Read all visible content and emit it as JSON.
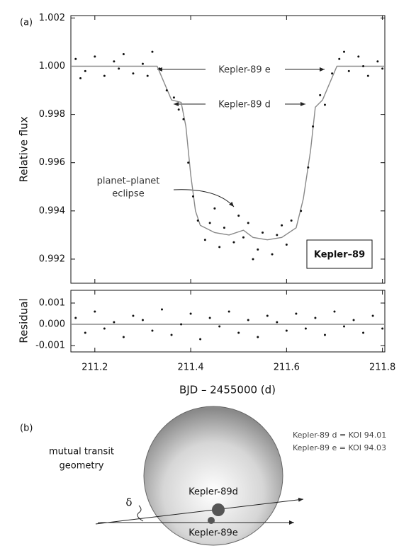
{
  "chart_data": [
    {
      "type": "scatter",
      "panel_label": "(a)",
      "y_label": "Relative flux",
      "xlim": [
        211.15,
        211.805
      ],
      "ylim": [
        0.991,
        1.0021
      ],
      "yticks": [
        1.002,
        {
          "value": 1,
          "label": "1.000"
        },
        0.998,
        0.996,
        0.994,
        0.992
      ],
      "points": {
        "color": "#111111",
        "x": [
          211.16,
          211.17,
          211.18,
          211.2,
          211.22,
          211.24,
          211.25,
          211.26,
          211.28,
          211.3,
          211.31,
          211.32,
          211.335,
          211.35,
          211.365,
          211.375,
          211.385,
          211.395,
          211.405,
          211.415,
          211.43,
          211.44,
          211.45,
          211.46,
          211.47,
          211.49,
          211.5,
          211.51,
          211.52,
          211.53,
          211.54,
          211.55,
          211.57,
          211.58,
          211.59,
          211.6,
          211.61,
          211.63,
          211.645,
          211.655,
          211.67,
          211.68,
          211.695,
          211.71,
          211.72,
          211.73,
          211.75,
          211.76,
          211.77,
          211.79,
          211.8
        ],
        "y": [
          1.0003,
          0.9995,
          0.9998,
          1.0004,
          0.9996,
          1.0002,
          0.9999,
          1.0005,
          0.9997,
          1.0001,
          0.9996,
          1.0006,
          0.9999,
          0.999,
          0.9987,
          0.9982,
          0.9978,
          0.996,
          0.9946,
          0.9936,
          0.9928,
          0.9935,
          0.9941,
          0.9925,
          0.9933,
          0.9927,
          0.9938,
          0.9929,
          0.9935,
          0.992,
          0.9924,
          0.9931,
          0.9922,
          0.993,
          0.9934,
          0.9926,
          0.9936,
          0.994,
          0.9958,
          0.9975,
          0.9988,
          0.9984,
          0.9997,
          1.0003,
          1.0006,
          0.9998,
          1.0004,
          1,
          0.9996,
          1.0002,
          0.9999
        ]
      },
      "model": {
        "color": "#888888",
        "x": [
          211.15,
          211.33,
          211.345,
          211.36,
          211.38,
          211.39,
          211.4,
          211.41,
          211.42,
          211.45,
          211.48,
          211.51,
          211.53,
          211.56,
          211.59,
          211.62,
          211.635,
          211.65,
          211.66,
          211.675,
          211.69,
          211.705,
          211.805
        ],
        "y": [
          1,
          1,
          0.9993,
          0.9986,
          0.9985,
          0.9975,
          0.9955,
          0.994,
          0.9934,
          0.9931,
          0.993,
          0.9932,
          0.9929,
          0.9928,
          0.9929,
          0.9933,
          0.9945,
          0.9965,
          0.9983,
          0.9986,
          0.9993,
          1,
          1
        ]
      },
      "annotations": {
        "planet_e": "Kepler-89 e",
        "planet_d": "Kepler-89 d",
        "eclipse": [
          "planet–planet",
          "eclipse"
        ],
        "box": "Kepler–89"
      }
    },
    {
      "type": "scatter",
      "y_label": "Residual",
      "x_label": "BJD – 2455000 (d)",
      "xlim": [
        211.15,
        211.805
      ],
      "xticks": [
        211.2,
        211.4,
        211.6,
        211.8
      ],
      "ylim": [
        -0.0013,
        0.0016
      ],
      "yticks": [
        0.001,
        {
          "value": 0,
          "label": "0.000"
        },
        {
          "value": -0.001,
          "label": "-0.001"
        }
      ],
      "points": {
        "color": "#111111",
        "x": [
          211.16,
          211.18,
          211.2,
          211.22,
          211.24,
          211.26,
          211.28,
          211.3,
          211.32,
          211.34,
          211.36,
          211.38,
          211.4,
          211.42,
          211.44,
          211.46,
          211.48,
          211.5,
          211.52,
          211.54,
          211.56,
          211.58,
          211.6,
          211.62,
          211.64,
          211.66,
          211.68,
          211.7,
          211.72,
          211.74,
          211.76,
          211.78,
          211.8
        ],
        "y": [
          0.0003,
          -0.0004,
          0.0006,
          -0.0002,
          0.0001,
          -0.0006,
          0.0004,
          0.0002,
          -0.0003,
          0.0007,
          -0.0005,
          0,
          0.0005,
          -0.0007,
          0.0003,
          -0.0001,
          0.0006,
          -0.0004,
          0.0002,
          -0.0006,
          0.0004,
          0.0001,
          -0.0003,
          0.0005,
          -0.0002,
          0.0003,
          -0.0005,
          0.0006,
          -0.0001,
          0.0002,
          -0.0004,
          0.0004,
          -0.0002
        ]
      },
      "model": {
        "color": "#888888",
        "x": [
          211.15,
          211.805
        ],
        "y": [
          0,
          0
        ]
      }
    }
  ],
  "diagram": {
    "label": "(b)",
    "title": [
      "mutual transit",
      "geometry"
    ],
    "notes": [
      "Kepler-89 d = KOI 94.01",
      "Kepler-89 e = KOI 94.03"
    ],
    "planet_d": "Kepler-89d",
    "planet_e": "Kepler-89e",
    "angle": "δ"
  }
}
